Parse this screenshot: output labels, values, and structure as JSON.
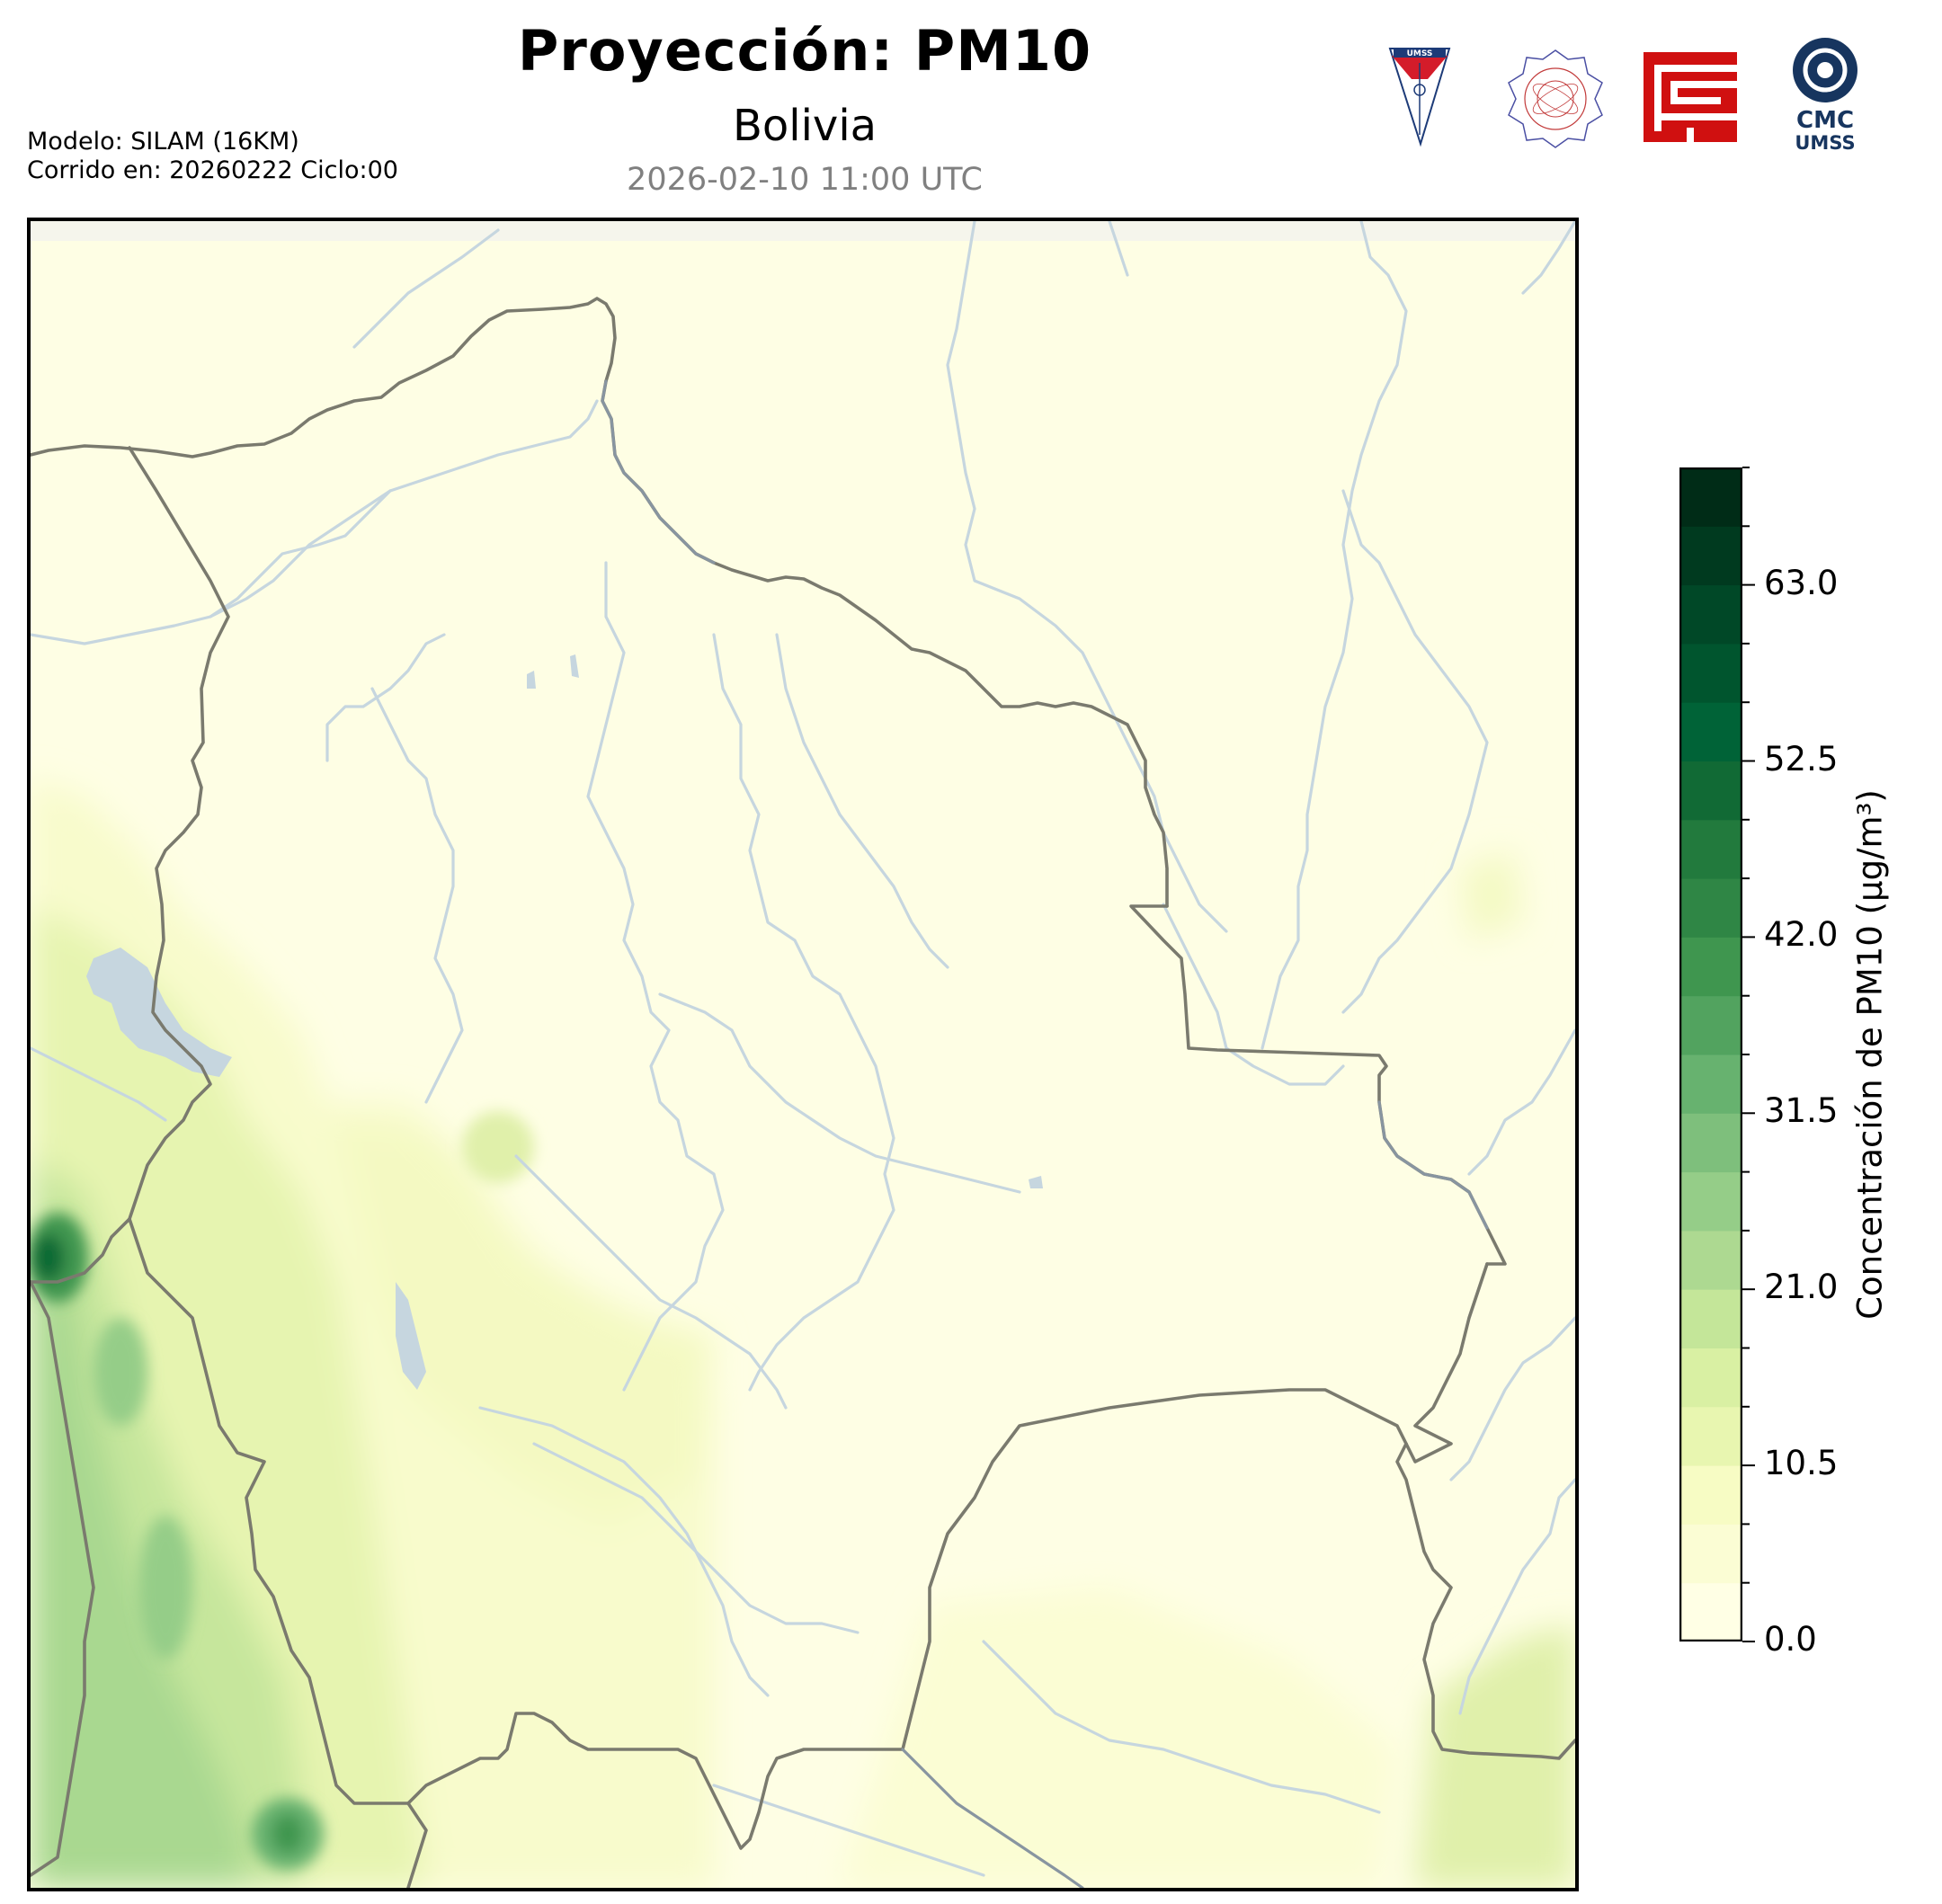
{
  "header": {
    "title": "Proyección: PM10",
    "subtitle": "Bolivia",
    "timestamp": "2026-02-10 11:00 UTC",
    "model_line1": "Modelo: SILAM (16KM)",
    "model_line2": "Corrido en: 20260222 Ciclo:00"
  },
  "logos": [
    {
      "name": "umss-shield-logo",
      "text": "UMSS"
    },
    {
      "name": "departamento-de-fisica-seal-logo",
      "text": ""
    },
    {
      "name": "red-geometric-logo",
      "text": ""
    },
    {
      "name": "cmc-umss-logo",
      "text": "CMC UMSS"
    }
  ],
  "colorbar": {
    "label": "Concentración de PM10 (µg/m³)",
    "min": 0.0,
    "max": 70.0,
    "step": 3.5,
    "ticks": [
      "0.0",
      "10.5",
      "21.0",
      "31.5",
      "42.0",
      "52.5",
      "63.0"
    ],
    "tick_values": [
      0.0,
      10.5,
      21.0,
      31.5,
      42.0,
      52.5,
      63.0
    ],
    "colors": [
      "#ffffe5",
      "#fbfdd4",
      "#f7fcc4",
      "#e8f6b0",
      "#d9f0a3",
      "#c4e699",
      "#add991",
      "#95cd88",
      "#7ebf7c",
      "#67b26f",
      "#52a35f",
      "#3f964f",
      "#2f8645",
      "#227a3d",
      "#116a35",
      "#006337",
      "#00552e",
      "#004827",
      "#003a1f",
      "#002c17"
    ]
  },
  "map": {
    "region": "Bolivia",
    "colors": {
      "background": "#fefee4",
      "border": "#7a7a6e",
      "river": "#c6d6df",
      "lake": "#c6d6df",
      "frame": "#000000"
    }
  }
}
